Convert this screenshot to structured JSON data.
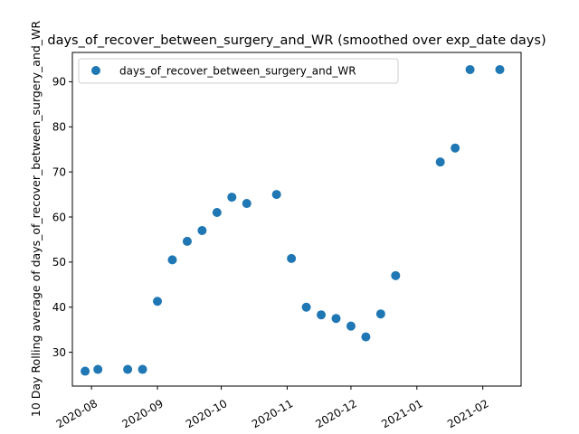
{
  "chart_data": {
    "type": "scatter",
    "title": "days_of_recover_between_surgery_and_WR (smoothed over exp_date days)",
    "xlabel": "",
    "ylabel": "10 Day Rolling average of days_of_recover_between_surgery_and_WR",
    "legend": {
      "placement": "top-left",
      "entries": [
        "days_of_recover_between_surgery_and_WR"
      ]
    },
    "grid": false,
    "xlim": [
      "2020-07-23",
      "2021-02-19"
    ],
    "ylim": [
      22.5,
      96.5
    ],
    "x_ticks": [
      "2020-08-01",
      "2020-09-01",
      "2020-10-01",
      "2020-11-01",
      "2020-12-01",
      "2021-01-01",
      "2021-02-01"
    ],
    "x_tick_labels": [
      "2020-08",
      "2020-09",
      "2020-10",
      "2020-11",
      "2020-12",
      "2021-01",
      "2021-02"
    ],
    "y_ticks": [
      30,
      40,
      50,
      60,
      70,
      80,
      90
    ],
    "y_tick_labels": [
      "30",
      "40",
      "50",
      "60",
      "70",
      "80",
      "90"
    ],
    "series": [
      {
        "name": "days_of_recover_between_surgery_and_WR",
        "color": "#1f77b4",
        "points": [
          {
            "x": "2020-07-29",
            "y": 25.8
          },
          {
            "x": "2020-08-04",
            "y": 26.2
          },
          {
            "x": "2020-08-18",
            "y": 26.2
          },
          {
            "x": "2020-08-25",
            "y": 26.2
          },
          {
            "x": "2020-09-01",
            "y": 41.3
          },
          {
            "x": "2020-09-08",
            "y": 50.5
          },
          {
            "x": "2020-09-15",
            "y": 54.6
          },
          {
            "x": "2020-09-22",
            "y": 57.0
          },
          {
            "x": "2020-09-29",
            "y": 61.0
          },
          {
            "x": "2020-10-06",
            "y": 64.4
          },
          {
            "x": "2020-10-13",
            "y": 63.0
          },
          {
            "x": "2020-10-27",
            "y": 65.0
          },
          {
            "x": "2020-11-03",
            "y": 50.8
          },
          {
            "x": "2020-11-10",
            "y": 40.0
          },
          {
            "x": "2020-11-17",
            "y": 38.3
          },
          {
            "x": "2020-11-24",
            "y": 37.5
          },
          {
            "x": "2020-12-01",
            "y": 35.8
          },
          {
            "x": "2020-12-08",
            "y": 33.4
          },
          {
            "x": "2020-12-15",
            "y": 38.5
          },
          {
            "x": "2020-12-22",
            "y": 47.0
          },
          {
            "x": "2021-01-12",
            "y": 72.2
          },
          {
            "x": "2021-01-19",
            "y": 75.3
          },
          {
            "x": "2021-01-26",
            "y": 92.7
          },
          {
            "x": "2021-02-09",
            "y": 92.7
          }
        ]
      }
    ]
  }
}
